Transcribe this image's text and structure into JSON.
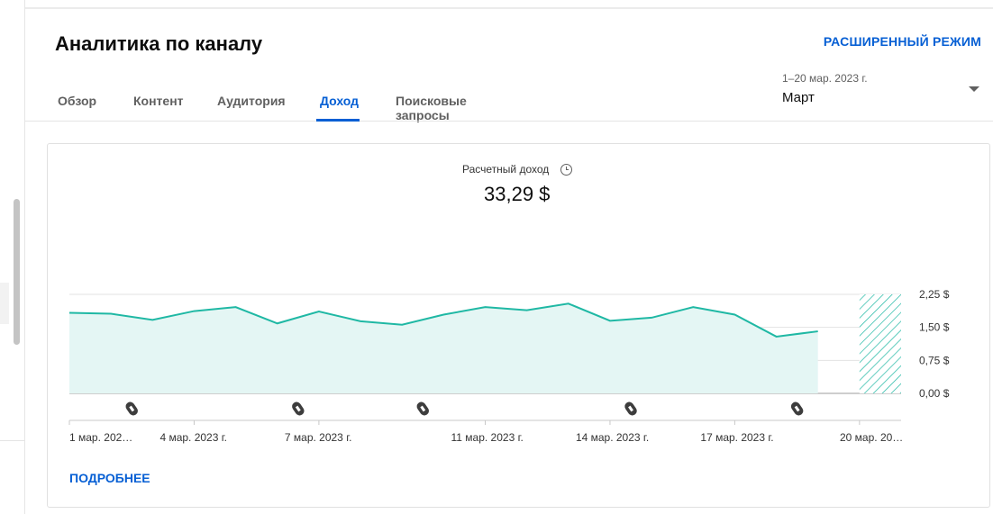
{
  "header": {
    "title": "Аналитика по каналу",
    "advanced_mode": "РАСШИРЕННЫЙ РЕЖИМ"
  },
  "tabs": [
    {
      "label": "Обзор"
    },
    {
      "label": "Контент"
    },
    {
      "label": "Аудитория"
    },
    {
      "label": "Доход",
      "active": true
    },
    {
      "label": "Поисковые запросы"
    }
  ],
  "period": {
    "range": "1–20 мар. 2023 г.",
    "name": "Март"
  },
  "card": {
    "metric_label": "Расчетный доход",
    "metric_value": "33,29 $",
    "more_link": "ПОДРОБНЕЕ"
  },
  "colors": {
    "accent": "#065fd4",
    "line": "#1fb8a4",
    "area": "#e4f6f4"
  },
  "chart_data": {
    "type": "area",
    "x": [
      "1 мар.",
      "2 мар.",
      "3 мар.",
      "4 мар.",
      "5 мар.",
      "6 мар.",
      "7 мар.",
      "8 мар.",
      "9 мар.",
      "10 мар.",
      "11 мар.",
      "12 мар.",
      "13 мар.",
      "14 мар.",
      "15 мар.",
      "16 мар.",
      "17 мар.",
      "18 мар.",
      "19 мар.",
      "20 мар."
    ],
    "values": [
      1.83,
      1.81,
      1.67,
      1.87,
      1.96,
      1.59,
      1.86,
      1.64,
      1.56,
      1.79,
      1.96,
      1.89,
      2.04,
      1.65,
      1.72,
      1.96,
      1.79,
      1.29,
      1.41,
      1.41
    ],
    "ylim": [
      0,
      2.25
    ],
    "yticks": [
      "0,00 $",
      "0,75 $",
      "1,50 $",
      "2,25 $"
    ],
    "xtick_labels": [
      "1 мар. 202…",
      "4 мар. 2023 г.",
      "7 мар. 2023 г.",
      "11 мар. 2023 г.",
      "14 мар. 2023 г.",
      "17 мар. 2023 г.",
      "20 мар. 20…"
    ],
    "xtick_days": [
      1,
      4,
      7,
      11,
      14,
      17,
      20
    ],
    "partial_last_day": true,
    "marker_days": [
      2,
      6,
      9,
      14,
      18
    ],
    "marker_icon": "shorts-icon"
  }
}
